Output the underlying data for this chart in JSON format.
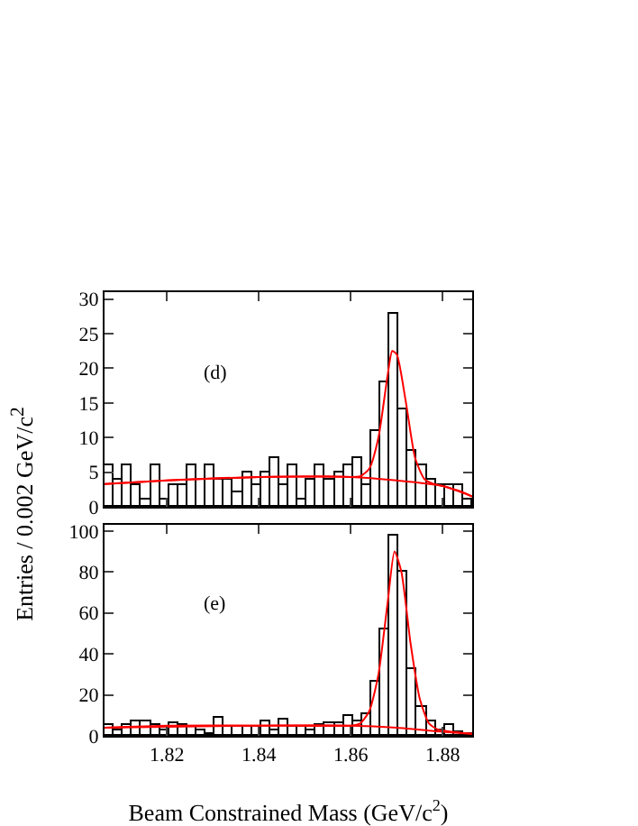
{
  "chart_data": [
    {
      "type": "histogram",
      "ylabel": "Entries / 0.002 GeV/c$^{2}$",
      "annotations": [
        "(d)"
      ],
      "tick_labels": "y",
      "grid": false,
      "legend": false,
      "bins": [
        1.8064,
        1.8084,
        1.8104,
        1.8124,
        1.8144,
        1.8164,
        1.8184,
        1.8204,
        1.8224,
        1.8244,
        1.8264,
        1.8284,
        1.8304,
        1.8324,
        1.8344,
        1.8364,
        1.8384,
        1.8404,
        1.8424,
        1.8444,
        1.8464,
        1.8484,
        1.8504,
        1.8524,
        1.8544,
        1.8564,
        1.8584,
        1.8604,
        1.8624,
        1.8644,
        1.8664,
        1.8684,
        1.8704,
        1.8724,
        1.8744,
        1.8764,
        1.8784,
        1.8804,
        1.8824,
        1.8844,
        1.8864
      ],
      "values": [
        6,
        4,
        6,
        3,
        1,
        6,
        1,
        3,
        3,
        6,
        0,
        6,
        4,
        4,
        2,
        5,
        3,
        5,
        7,
        3,
        6,
        1,
        4,
        6,
        4,
        5,
        6,
        7,
        3,
        11,
        18,
        28,
        14,
        8,
        6,
        4,
        3,
        3,
        3,
        1
      ],
      "color": "#000000",
      "series": [
        {
          "type": "line",
          "color": "#ff0000",
          "x": [
            1.8064,
            1.82,
            1.84,
            1.855,
            1.862,
            1.864,
            1.866,
            1.868,
            1.869,
            1.87,
            1.872,
            1.874,
            1.876,
            1.878,
            1.88,
            1.884,
            1.8864
          ],
          "values": [
            3.3,
            3.8,
            4.3,
            4.4,
            4.4,
            5.5,
            10,
            19,
            22.5,
            22,
            15,
            7,
            4,
            3.3,
            3,
            2.2,
            1.5
          ]
        },
        {
          "type": "line",
          "color": "#ff0000",
          "x": [
            1.8064,
            1.82,
            1.84,
            1.86,
            1.87,
            1.88,
            1.8864
          ],
          "values": [
            3.3,
            3.8,
            4.3,
            4.3,
            3.8,
            3,
            1.5
          ]
        }
      ],
      "xlim": [
        1.8064,
        1.8864
      ],
      "xticks": [
        1.82,
        1.84,
        1.86,
        1.88
      ],
      "ylim": [
        0,
        31
      ],
      "yticks": [
        0,
        5,
        10,
        15,
        20,
        25,
        30
      ]
    },
    {
      "type": "histogram",
      "xlabel": "Beam Constrained Mass (GeV/c$^{2}$)",
      "annotations": [
        "(e)"
      ],
      "grid": false,
      "legend": false,
      "bins": [
        1.8064,
        1.8084,
        1.8104,
        1.8124,
        1.8144,
        1.8164,
        1.8184,
        1.8204,
        1.8224,
        1.8244,
        1.8264,
        1.8284,
        1.8304,
        1.8324,
        1.8344,
        1.8364,
        1.8384,
        1.8404,
        1.8424,
        1.8444,
        1.8464,
        1.8484,
        1.8504,
        1.8524,
        1.8544,
        1.8564,
        1.8584,
        1.8604,
        1.8624,
        1.8644,
        1.8664,
        1.8684,
        1.8704,
        1.8724,
        1.8744,
        1.8764,
        1.8784,
        1.8804,
        1.8824,
        1.8844,
        1.8864
      ],
      "values": [
        5,
        3,
        5,
        7,
        7,
        5,
        3,
        6,
        5,
        4,
        3,
        1,
        9,
        4,
        4,
        4,
        4,
        7,
        3,
        8,
        4,
        4,
        3,
        5,
        6,
        6,
        10,
        7,
        11,
        26,
        52,
        98,
        80,
        33,
        14,
        7,
        3,
        5,
        2,
        1
      ],
      "color": "#000000",
      "series": [
        {
          "type": "line",
          "color": "#ff0000",
          "x": [
            1.8064,
            1.82,
            1.84,
            1.86,
            1.862,
            1.864,
            1.866,
            1.868,
            1.8695,
            1.871,
            1.873,
            1.875,
            1.877,
            1.879,
            1.882,
            1.8864
          ],
          "values": [
            4,
            5,
            5,
            5,
            6,
            12,
            30,
            65,
            90,
            80,
            45,
            18,
            6,
            3,
            2,
            1
          ]
        },
        {
          "type": "line",
          "color": "#ff0000",
          "x": [
            1.8064,
            1.84,
            1.86,
            1.87,
            1.88,
            1.8864
          ],
          "values": [
            4,
            5,
            5,
            4,
            2,
            1
          ]
        }
      ],
      "xlim": [
        1.8064,
        1.8864
      ],
      "xticks": [
        1.82,
        1.84,
        1.86,
        1.88
      ],
      "ylim": [
        0,
        103
      ],
      "yticks": [
        0,
        20,
        40,
        60,
        80,
        100
      ]
    }
  ]
}
